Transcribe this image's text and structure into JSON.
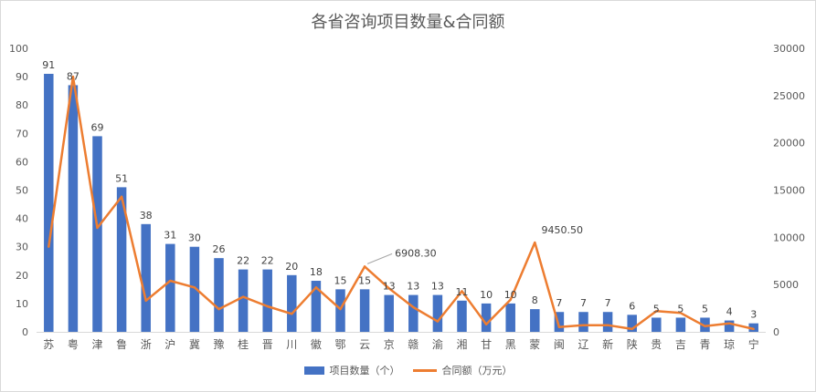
{
  "chart_data": {
    "type": "bar+line",
    "title": "各省咨询项目数量&合同额",
    "categories": [
      "苏",
      "粤",
      "津",
      "鲁",
      "浙",
      "沪",
      "冀",
      "豫",
      "桂",
      "晋",
      "川",
      "徽",
      "鄂",
      "云",
      "京",
      "赣",
      "渝",
      "湘",
      "甘",
      "黑",
      "蒙",
      "闽",
      "辽",
      "新",
      "陕",
      "贵",
      "吉",
      "青",
      "琼",
      "宁"
    ],
    "series": [
      {
        "name": "项目数量（个）",
        "type": "bar",
        "axis": "left",
        "color": "#4472c4",
        "values": [
          91,
          87,
          69,
          51,
          38,
          31,
          30,
          26,
          22,
          22,
          20,
          18,
          15,
          15,
          13,
          13,
          13,
          11,
          10,
          10,
          8,
          7,
          7,
          7,
          6,
          5,
          5,
          5,
          4,
          3
        ]
      },
      {
        "name": "合同额（万元）",
        "type": "line",
        "axis": "right",
        "color": "#ed7d31",
        "values": [
          9000,
          27000,
          11000,
          14300,
          3300,
          5400,
          4700,
          2400,
          3700,
          2700,
          1900,
          4700,
          2400,
          6908.3,
          4600,
          2600,
          1100,
          4300,
          800,
          3400,
          9450.5,
          500,
          700,
          700,
          300,
          2200,
          2000,
          600,
          900,
          300
        ]
      }
    ],
    "left_axis": {
      "min": 0,
      "max": 100,
      "ticks": [
        "0",
        "10",
        "20",
        "30",
        "40",
        "50",
        "60",
        "70",
        "80",
        "90",
        "100"
      ]
    },
    "right_axis": {
      "min": 0,
      "max": 30000,
      "ticks": [
        "0",
        "5000",
        "10000",
        "15000",
        "20000",
        "25000",
        "30000"
      ]
    },
    "line_annotations": [
      {
        "index": 13,
        "label": "6908.30"
      },
      {
        "index": 20,
        "label": "9450.50"
      }
    ],
    "grid": false,
    "legend": "bottom"
  }
}
